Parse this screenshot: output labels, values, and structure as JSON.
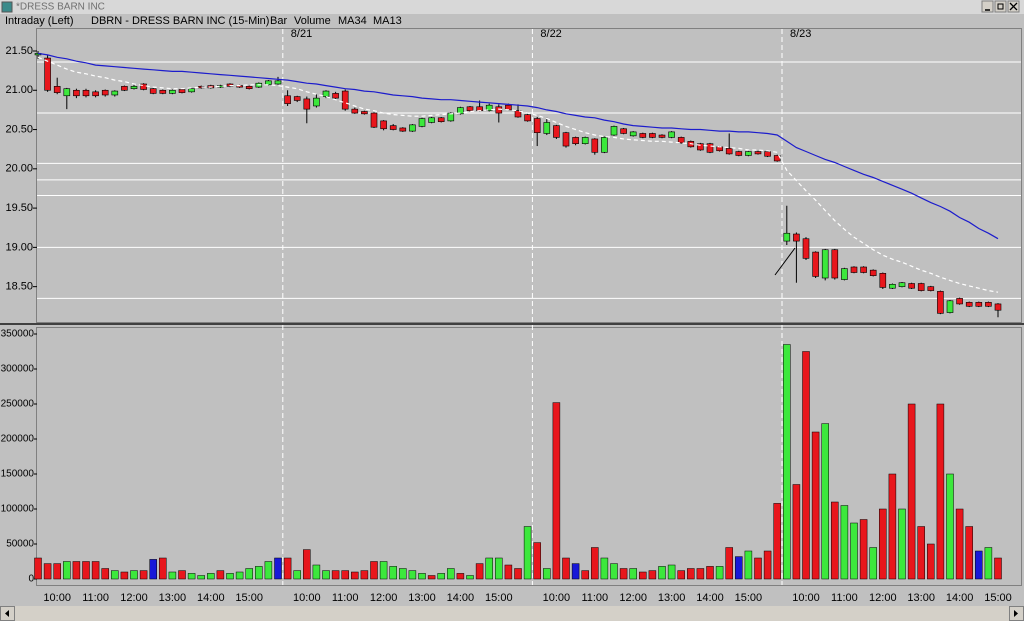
{
  "window_title": "*DRESS BARN INC",
  "chart_data": {
    "type": "candlestick",
    "mode": "Intraday (Left)",
    "title": "DBRN - DRESS BARN INC (15-Min)",
    "categories": [
      null,
      null,
      "10:00",
      null,
      null,
      null,
      "11:00",
      null,
      null,
      null,
      "12:00",
      null,
      null,
      null,
      "13:00",
      null,
      null,
      null,
      "14:00",
      null,
      null,
      null,
      "15:00",
      null,
      null,
      null,
      null,
      null,
      "10:00",
      null,
      null,
      null,
      "11:00",
      null,
      null,
      null,
      "12:00",
      null,
      null,
      null,
      "13:00",
      null,
      null,
      null,
      "14:00",
      null,
      null,
      null,
      "15:00",
      null,
      null,
      null,
      null,
      null,
      "10:00",
      null,
      null,
      null,
      "11:00",
      null,
      null,
      null,
      "12:00",
      null,
      null,
      null,
      "13:00",
      null,
      null,
      null,
      "14:00",
      null,
      null,
      null,
      "15:00",
      null,
      null,
      null,
      null,
      null,
      "10:00",
      null,
      null,
      null,
      "11:00",
      null,
      null,
      null,
      "12:00",
      null,
      null,
      null,
      "13:00",
      null,
      null,
      null,
      "14:00",
      null,
      null,
      null,
      "15:00"
    ],
    "days": [
      "8/21",
      "8/22",
      "8/23"
    ],
    "series": [
      {
        "name": "Bar",
        "up_color": "#3ce83c",
        "down_color": "#e8161c",
        "open": [
          21.45,
          21.41,
          21.05,
          20.93,
          21.0,
          21.0,
          20.98,
          21.0,
          20.94,
          21.05,
          21.02,
          21.08,
          21.02,
          21.0,
          20.96,
          21.01,
          20.98,
          21.05,
          21.06,
          21.04,
          21.08,
          21.06,
          21.05,
          21.04,
          21.07,
          21.08,
          20.93,
          20.92,
          20.89,
          20.8,
          20.92,
          20.96,
          20.99,
          20.76,
          20.73,
          20.71,
          20.61,
          20.55,
          20.52,
          20.48,
          20.54,
          20.59,
          20.65,
          20.61,
          20.7,
          20.79,
          20.79,
          20.74,
          20.79,
          20.81,
          20.74,
          20.69,
          20.64,
          20.45,
          20.55,
          20.46,
          20.4,
          20.32,
          20.38,
          20.21,
          20.43,
          20.51,
          20.42,
          20.45,
          20.45,
          20.43,
          20.4,
          20.4,
          20.35,
          20.32,
          20.32,
          20.28,
          20.26,
          20.22,
          20.17,
          20.22,
          20.22,
          20.17,
          19.08,
          19.17,
          19.11,
          18.94,
          18.61,
          18.97,
          18.59,
          18.75,
          18.75,
          18.71,
          18.67,
          18.48,
          18.5,
          18.54,
          18.54,
          18.5,
          18.44,
          18.17,
          18.35,
          18.3,
          18.3,
          18.3,
          18.28
        ],
        "high": [
          21.5,
          21.45,
          21.16,
          21.03,
          21.02,
          21.02,
          21.0,
          21.01,
          21.0,
          21.06,
          21.07,
          21.09,
          21.03,
          21.01,
          21.01,
          21.02,
          21.03,
          21.06,
          21.07,
          21.07,
          21.09,
          21.07,
          21.06,
          21.1,
          21.13,
          21.17,
          21.0,
          20.93,
          20.92,
          20.95,
          21.0,
          20.98,
          21.01,
          20.78,
          20.74,
          20.72,
          20.62,
          20.57,
          20.53,
          20.57,
          20.65,
          20.66,
          20.66,
          20.72,
          20.79,
          20.8,
          20.87,
          20.83,
          20.82,
          20.83,
          20.82,
          20.7,
          20.66,
          20.65,
          20.56,
          20.47,
          20.41,
          20.41,
          20.39,
          20.41,
          20.55,
          20.52,
          20.48,
          20.46,
          20.46,
          20.44,
          20.48,
          20.41,
          20.36,
          20.33,
          20.33,
          20.29,
          20.45,
          20.23,
          20.23,
          20.23,
          20.23,
          20.18,
          19.53,
          19.19,
          19.13,
          18.95,
          18.98,
          18.98,
          18.74,
          18.76,
          18.76,
          18.72,
          18.68,
          18.54,
          18.56,
          18.55,
          18.55,
          18.51,
          18.45,
          18.33,
          18.36,
          18.31,
          18.31,
          18.31,
          18.29
        ],
        "low": [
          21.4,
          20.98,
          20.95,
          20.76,
          20.9,
          20.91,
          20.91,
          20.92,
          20.92,
          20.99,
          21.01,
          21.0,
          20.95,
          20.95,
          20.95,
          20.96,
          20.97,
          21.02,
          21.02,
          21.03,
          21.04,
          21.03,
          21.01,
          21.03,
          21.06,
          21.07,
          20.8,
          20.85,
          20.58,
          20.78,
          20.9,
          20.89,
          20.74,
          20.7,
          20.69,
          20.52,
          20.49,
          20.49,
          20.47,
          20.47,
          20.53,
          20.58,
          20.59,
          20.6,
          20.69,
          20.73,
          20.73,
          20.73,
          20.59,
          20.74,
          20.65,
          20.6,
          20.29,
          20.43,
          20.38,
          20.27,
          20.3,
          20.31,
          20.18,
          20.2,
          20.42,
          20.44,
          20.41,
          20.39,
          20.39,
          20.39,
          20.39,
          20.32,
          20.27,
          20.23,
          20.2,
          20.22,
          20.18,
          20.16,
          20.16,
          20.18,
          20.15,
          20.09,
          19.03,
          18.55,
          18.84,
          18.61,
          18.58,
          18.59,
          18.58,
          18.67,
          18.67,
          18.63,
          18.47,
          18.47,
          18.49,
          18.47,
          18.44,
          18.44,
          18.15,
          18.16,
          18.27,
          18.24,
          18.24,
          18.24,
          18.11
        ],
        "close": [
          21.47,
          21.0,
          20.97,
          21.02,
          20.93,
          20.93,
          20.93,
          20.94,
          20.99,
          21.0,
          21.05,
          21.01,
          20.96,
          20.96,
          21.0,
          20.97,
          21.02,
          21.03,
          21.03,
          21.06,
          21.05,
          21.04,
          21.02,
          21.09,
          21.12,
          21.12,
          20.83,
          20.87,
          20.76,
          20.9,
          20.99,
          20.9,
          20.76,
          20.71,
          20.7,
          20.53,
          20.51,
          20.5,
          20.48,
          20.56,
          20.64,
          20.65,
          20.6,
          20.71,
          20.78,
          20.74,
          20.74,
          20.81,
          20.71,
          20.75,
          20.66,
          20.61,
          20.46,
          20.59,
          20.4,
          20.29,
          20.32,
          20.4,
          20.21,
          20.4,
          20.54,
          20.45,
          20.47,
          20.4,
          20.4,
          20.4,
          20.47,
          20.33,
          20.28,
          20.24,
          20.21,
          20.23,
          20.19,
          20.17,
          20.22,
          20.19,
          20.16,
          20.1,
          19.18,
          19.08,
          18.86,
          18.63,
          18.97,
          18.61,
          18.73,
          18.68,
          18.68,
          18.64,
          18.49,
          18.53,
          18.55,
          18.48,
          18.45,
          18.45,
          18.16,
          18.32,
          18.28,
          18.25,
          18.25,
          18.25,
          18.2
        ]
      },
      {
        "name": "MA34",
        "color": "#1c1ccc",
        "dashed": false,
        "values": [
          21.47,
          21.45,
          21.42,
          21.4,
          21.37,
          21.35,
          21.32,
          21.31,
          21.3,
          21.29,
          21.28,
          21.27,
          21.26,
          21.25,
          21.24,
          21.24,
          21.23,
          21.22,
          21.21,
          21.2,
          21.19,
          21.18,
          21.17,
          21.16,
          21.15,
          21.14,
          21.13,
          21.11,
          21.09,
          21.08,
          21.06,
          21.04,
          21.02,
          21.01,
          20.99,
          20.98,
          20.96,
          20.94,
          20.93,
          20.92,
          20.9,
          20.89,
          20.88,
          20.88,
          20.87,
          20.86,
          20.85,
          20.84,
          20.83,
          20.82,
          20.81,
          20.8,
          20.78,
          20.75,
          20.73,
          20.7,
          20.68,
          20.66,
          20.65,
          20.62,
          20.6,
          20.57,
          20.55,
          20.54,
          20.53,
          20.52,
          20.52,
          20.51,
          20.5,
          20.5,
          20.49,
          20.48,
          20.48,
          20.47,
          20.47,
          20.46,
          20.45,
          20.43,
          20.35,
          20.27,
          20.22,
          20.17,
          20.12,
          20.08,
          20.03,
          19.98,
          19.93,
          19.89,
          19.84,
          19.79,
          19.74,
          19.69,
          19.63,
          19.57,
          19.52,
          19.46,
          19.38,
          19.32,
          19.24,
          19.18,
          19.11
        ]
      },
      {
        "name": "MA13",
        "color": "#ffffff",
        "dashed": true,
        "values": [
          21.42,
          21.37,
          21.32,
          21.27,
          21.23,
          21.21,
          21.18,
          21.16,
          21.13,
          21.11,
          21.08,
          21.06,
          21.04,
          21.03,
          21.02,
          21.02,
          21.03,
          21.04,
          21.04,
          21.05,
          21.06,
          21.06,
          21.07,
          21.07,
          21.07,
          21.06,
          21.04,
          21.02,
          20.98,
          20.95,
          20.92,
          20.88,
          20.84,
          20.8,
          20.76,
          20.74,
          20.71,
          20.69,
          20.68,
          20.67,
          20.67,
          20.68,
          20.69,
          20.7,
          20.71,
          20.73,
          20.74,
          20.75,
          20.76,
          20.75,
          20.74,
          20.71,
          20.68,
          20.64,
          20.59,
          20.54,
          20.5,
          20.46,
          20.43,
          20.41,
          20.4,
          20.38,
          20.37,
          20.36,
          20.35,
          20.35,
          20.34,
          20.33,
          20.32,
          20.3,
          20.29,
          20.28,
          20.27,
          20.26,
          20.24,
          20.24,
          20.23,
          20.21,
          19.98,
          19.85,
          19.72,
          19.6,
          19.47,
          19.34,
          19.23,
          19.13,
          19.05,
          18.97,
          18.9,
          18.85,
          18.81,
          18.76,
          18.71,
          18.67,
          18.62,
          18.58,
          18.54,
          18.51,
          18.48,
          18.45,
          18.43
        ]
      }
    ],
    "levels": [
      21.36,
      20.71,
      20.07,
      19.86,
      19.66,
      19.0,
      18.35
    ],
    "level_color": "#ffffff",
    "ylim": [
      18.05,
      21.78
    ],
    "yticks": [
      {
        "value": 21.5,
        "label": "21.50"
      },
      {
        "value": 21,
        "label": "21.00"
      },
      {
        "value": 20.5,
        "label": "20.50"
      },
      {
        "value": 20,
        "label": "20.00"
      },
      {
        "value": 19.5,
        "label": "19.50"
      },
      {
        "value": 19,
        "label": "19.00"
      },
      {
        "value": 18.5,
        "label": "18.50"
      }
    ],
    "volume": {
      "type": "bar",
      "name": "Volume",
      "color": "#1c1ccc",
      "values": [
        30000,
        22000,
        22000,
        25000,
        25000,
        25000,
        25000,
        15000,
        12000,
        10000,
        12000,
        12000,
        28000,
        30000,
        10000,
        12000,
        8000,
        5000,
        8000,
        12000,
        8000,
        10000,
        15000,
        18000,
        25000,
        30000,
        30000,
        12000,
        42000,
        20000,
        12000,
        12000,
        12000,
        10000,
        12000,
        25000,
        25000,
        18000,
        15000,
        12000,
        8000,
        5000,
        8000,
        15000,
        8000,
        5000,
        22000,
        30000,
        30000,
        20000,
        15000,
        75000,
        52000,
        15000,
        252000,
        30000,
        22000,
        12000,
        45000,
        30000,
        22000,
        15000,
        15000,
        10000,
        12000,
        18000,
        20000,
        12000,
        15000,
        15000,
        18000,
        18000,
        45000,
        32000,
        40000,
        30000,
        40000,
        108000,
        335000,
        135000,
        325000,
        210000,
        222000,
        110000,
        105000,
        80000,
        85000,
        45000,
        100000,
        150000,
        100000,
        250000,
        75000,
        50000,
        250000,
        150000,
        100000,
        75000,
        40000,
        45000,
        30000
      ],
      "colors": [
        "#e8161c",
        "#e8161c",
        "#e8161c",
        "#3ce83c",
        "#e8161c",
        "#e8161c",
        "#e8161c",
        "#e8161c",
        "#3ce83c",
        "#e8161c",
        "#3ce83c",
        "#e8161c",
        "#1818d8",
        "#e8161c",
        "#3ce83c",
        "#e8161c",
        "#3ce83c",
        "#3ce83c",
        "#3ce83c",
        "#e8161c",
        "#3ce83c",
        "#3ce83c",
        "#3ce83c",
        "#3ce83c",
        "#3ce83c",
        "#1818d8",
        "#e8161c",
        "#3ce83c",
        "#e8161c",
        "#3ce83c",
        "#3ce83c",
        "#e8161c",
        "#e8161c",
        "#e8161c",
        "#e8161c",
        "#e8161c",
        "#3ce83c",
        "#3ce83c",
        "#3ce83c",
        "#3ce83c",
        "#3ce83c",
        "#e8161c",
        "#3ce83c",
        "#3ce83c",
        "#e8161c",
        "#3ce83c",
        "#e8161c",
        "#3ce83c",
        "#3ce83c",
        "#e8161c",
        "#e8161c",
        "#3ce83c",
        "#e8161c",
        "#3ce83c",
        "#e8161c",
        "#e8161c",
        "#1818d8",
        "#e8161c",
        "#e8161c",
        "#3ce83c",
        "#3ce83c",
        "#e8161c",
        "#3ce83c",
        "#e8161c",
        "#e8161c",
        "#3ce83c",
        "#3ce83c",
        "#e8161c",
        "#e8161c",
        "#e8161c",
        "#e8161c",
        "#3ce83c",
        "#e8161c",
        "#1818d8",
        "#3ce83c",
        "#e8161c",
        "#e8161c",
        "#e8161c",
        "#3ce83c",
        "#e8161c",
        "#e8161c",
        "#e8161c",
        "#3ce83c",
        "#e8161c",
        "#3ce83c",
        "#3ce83c",
        "#e8161c",
        "#3ce83c",
        "#e8161c",
        "#e8161c",
        "#3ce83c",
        "#e8161c",
        "#e8161c",
        "#e8161c",
        "#e8161c",
        "#3ce83c",
        "#e8161c",
        "#e8161c",
        "#1818d8",
        "#3ce83c",
        "#e8161c"
      ],
      "ylim": [
        0,
        360000
      ],
      "yticks": [
        0,
        50000,
        100000,
        150000,
        200000,
        250000,
        300000,
        350000
      ]
    }
  }
}
